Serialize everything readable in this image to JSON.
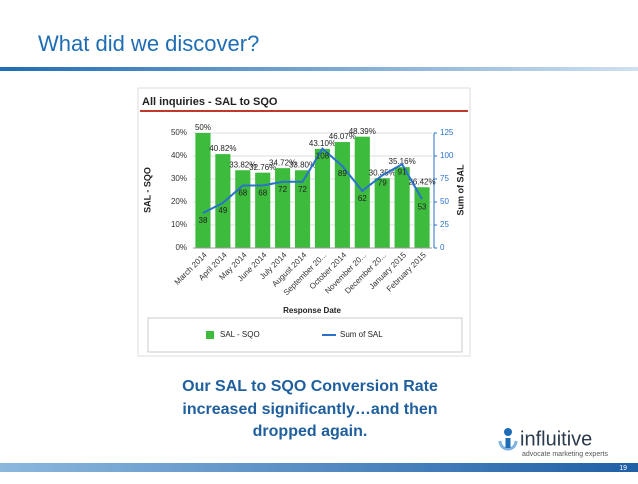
{
  "slide_title": "What did we discover?",
  "chart_data": {
    "type": "bar",
    "title": "All inquiries - SAL to SQO",
    "x_label": "Response Date",
    "y_label": "SAL - SQO",
    "y2_label": "Sum of SAL",
    "categories": [
      "March 2014",
      "April 2014",
      "May 2014",
      "June 2014",
      "July 2014",
      "August 2014",
      "September 20...",
      "October 2014",
      "November 20...",
      "December 20...",
      "January 2015",
      "February 2015"
    ],
    "series": [
      {
        "name": "SAL - SQO",
        "type": "bar",
        "color": "#3dbb3d",
        "values": [
          50,
          40.82,
          33.82,
          32.76,
          34.72,
          33.8,
          43.1,
          46.07,
          48.39,
          30.35,
          35.16,
          26.42
        ],
        "value_labels": [
          "50%",
          "40.82%",
          "33.82%",
          "32.76%",
          "34.72%",
          "33.80%",
          "43.10%",
          "46.07%",
          "48.39%",
          "30.35%",
          "35.16%",
          "26.42%"
        ]
      },
      {
        "name": "Sum of SAL",
        "type": "line",
        "axis": "y2",
        "color": "#2a72c9",
        "values": [
          38,
          49,
          68,
          68,
          72,
          72,
          108,
          89,
          62,
          79,
          91,
          53
        ]
      }
    ],
    "ylim": [
      0,
      50
    ],
    "yticks": [
      {
        "value": 0,
        "label": "0%"
      },
      {
        "value": 10,
        "label": "10%"
      },
      {
        "value": 20,
        "label": "20%"
      },
      {
        "value": 30,
        "label": "30%"
      },
      {
        "value": 40,
        "label": "40%"
      },
      {
        "value": 50,
        "label": "50%"
      }
    ],
    "y2lim": [
      0,
      125
    ],
    "y2ticks": [
      0,
      25,
      50,
      75,
      100,
      125
    ],
    "grid": true,
    "legend": "bottom"
  },
  "caption": [
    "Our SAL to SQO Conversion Rate",
    "increased significantly…and then",
    "dropped again."
  ],
  "logo": {
    "name": "influitive",
    "tagline": "advocate marketing experts"
  },
  "page_number": "19"
}
